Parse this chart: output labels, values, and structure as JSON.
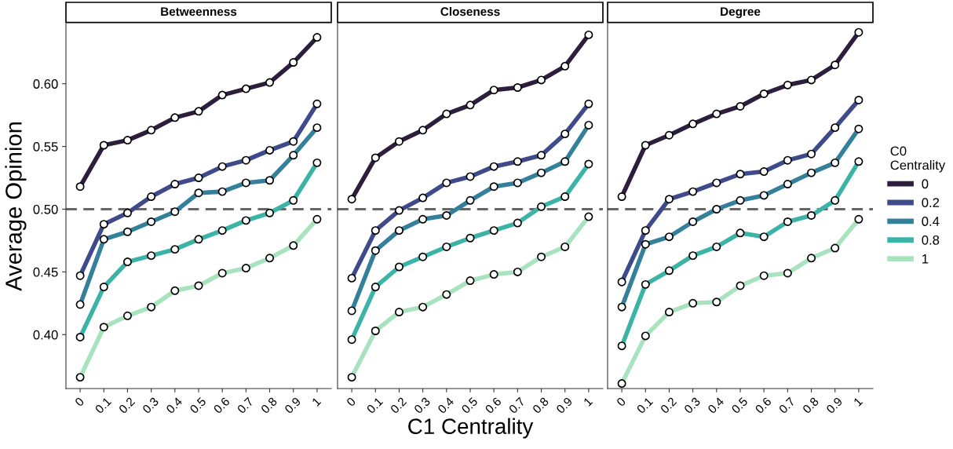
{
  "chart_data": [
    {
      "type": "line",
      "title": "Betweenness",
      "ylabel": "Average Opinion",
      "categories": [
        "0",
        "0.1",
        "0.2",
        "0.3",
        "0.4",
        "0.5",
        "0.6",
        "0.7",
        "0.8",
        "0.9",
        "1"
      ],
      "ylim": [
        0.357,
        0.648
      ],
      "yticks": [
        {
          "value": 0.4,
          "label": "0.40"
        },
        {
          "value": 0.45,
          "label": "0.45"
        },
        {
          "value": 0.5,
          "label": "0.50"
        },
        {
          "value": 0.55,
          "label": "0.55"
        },
        {
          "value": 0.6,
          "label": "0.60"
        }
      ],
      "marker": "circle",
      "line_style": "solid",
      "grid": false,
      "ref_lines": [
        {
          "axis": "y",
          "value": 0.5,
          "color": "#666666",
          "line_style": "dashed"
        }
      ],
      "series": [
        {
          "color": "#2d1e3e",
          "values": [
            0.518,
            0.551,
            0.555,
            0.563,
            0.573,
            0.578,
            0.591,
            0.596,
            0.601,
            0.617,
            0.637
          ]
        },
        {
          "color": "#3f4a8a",
          "values": [
            0.447,
            0.488,
            0.497,
            0.51,
            0.52,
            0.525,
            0.534,
            0.539,
            0.547,
            0.554,
            0.584
          ]
        },
        {
          "color": "#34809b",
          "values": [
            0.424,
            0.476,
            0.482,
            0.49,
            0.498,
            0.513,
            0.514,
            0.521,
            0.523,
            0.543,
            0.565
          ]
        },
        {
          "color": "#3bb3a6",
          "values": [
            0.398,
            0.438,
            0.458,
            0.463,
            0.468,
            0.476,
            0.483,
            0.491,
            0.497,
            0.507,
            0.537
          ]
        },
        {
          "color": "#a8e2be",
          "values": [
            0.366,
            0.406,
            0.415,
            0.422,
            0.435,
            0.439,
            0.449,
            0.453,
            0.461,
            0.471,
            0.492
          ]
        }
      ]
    },
    {
      "type": "line",
      "title": "Closeness",
      "xlabel": "C1 Centrality",
      "categories": [
        "0",
        "0.1",
        "0.2",
        "0.3",
        "0.4",
        "0.5",
        "0.6",
        "0.7",
        "0.8",
        "0.9",
        "1"
      ],
      "ylim": [
        0.357,
        0.648
      ],
      "tick_labels": "x",
      "marker": "circle",
      "line_style": "solid",
      "grid": false,
      "ref_lines": [
        {
          "axis": "y",
          "value": 0.5,
          "color": "#666666",
          "line_style": "dashed"
        }
      ],
      "series": [
        {
          "color": "#2d1e3e",
          "values": [
            0.508,
            0.541,
            0.554,
            0.563,
            0.576,
            0.583,
            0.595,
            0.597,
            0.603,
            0.614,
            0.639
          ]
        },
        {
          "color": "#3f4a8a",
          "values": [
            0.445,
            0.483,
            0.499,
            0.509,
            0.521,
            0.526,
            0.534,
            0.538,
            0.543,
            0.56,
            0.584
          ]
        },
        {
          "color": "#34809b",
          "values": [
            0.419,
            0.467,
            0.483,
            0.492,
            0.495,
            0.507,
            0.518,
            0.521,
            0.529,
            0.538,
            0.567
          ]
        },
        {
          "color": "#3bb3a6",
          "values": [
            0.396,
            0.438,
            0.454,
            0.462,
            0.47,
            0.477,
            0.483,
            0.489,
            0.502,
            0.51,
            0.536
          ]
        },
        {
          "color": "#a8e2be",
          "values": [
            0.366,
            0.403,
            0.418,
            0.422,
            0.432,
            0.443,
            0.448,
            0.45,
            0.462,
            0.47,
            0.494
          ]
        }
      ]
    },
    {
      "type": "line",
      "title": "Degree",
      "legend_title": "C0\nCentrality",
      "categories": [
        "0",
        "0.1",
        "0.2",
        "0.3",
        "0.4",
        "0.5",
        "0.6",
        "0.7",
        "0.8",
        "0.9",
        "1"
      ],
      "ylim": [
        0.357,
        0.648
      ],
      "tick_labels": "x",
      "marker": "circle",
      "line_style": "solid",
      "grid": false,
      "legend": "right",
      "ref_lines": [
        {
          "axis": "y",
          "value": 0.5,
          "color": "#666666",
          "line_style": "dashed"
        }
      ],
      "series": [
        {
          "name": "0",
          "color": "#2d1e3e",
          "values": [
            0.51,
            0.551,
            0.559,
            0.568,
            0.576,
            0.582,
            0.592,
            0.599,
            0.603,
            0.615,
            0.641
          ]
        },
        {
          "name": "0.2",
          "color": "#3f4a8a",
          "values": [
            0.442,
            0.483,
            0.508,
            0.514,
            0.521,
            0.528,
            0.53,
            0.539,
            0.544,
            0.565,
            0.587
          ]
        },
        {
          "name": "0.4",
          "color": "#34809b",
          "values": [
            0.422,
            0.472,
            0.478,
            0.49,
            0.5,
            0.507,
            0.511,
            0.52,
            0.529,
            0.537,
            0.564
          ]
        },
        {
          "name": "0.8",
          "color": "#3bb3a6",
          "values": [
            0.391,
            0.44,
            0.451,
            0.463,
            0.47,
            0.481,
            0.478,
            0.49,
            0.495,
            0.507,
            0.538
          ]
        },
        {
          "name": "1",
          "color": "#a8e2be",
          "values": [
            0.361,
            0.399,
            0.418,
            0.425,
            0.426,
            0.439,
            0.447,
            0.449,
            0.461,
            0.469,
            0.492
          ]
        }
      ]
    }
  ]
}
